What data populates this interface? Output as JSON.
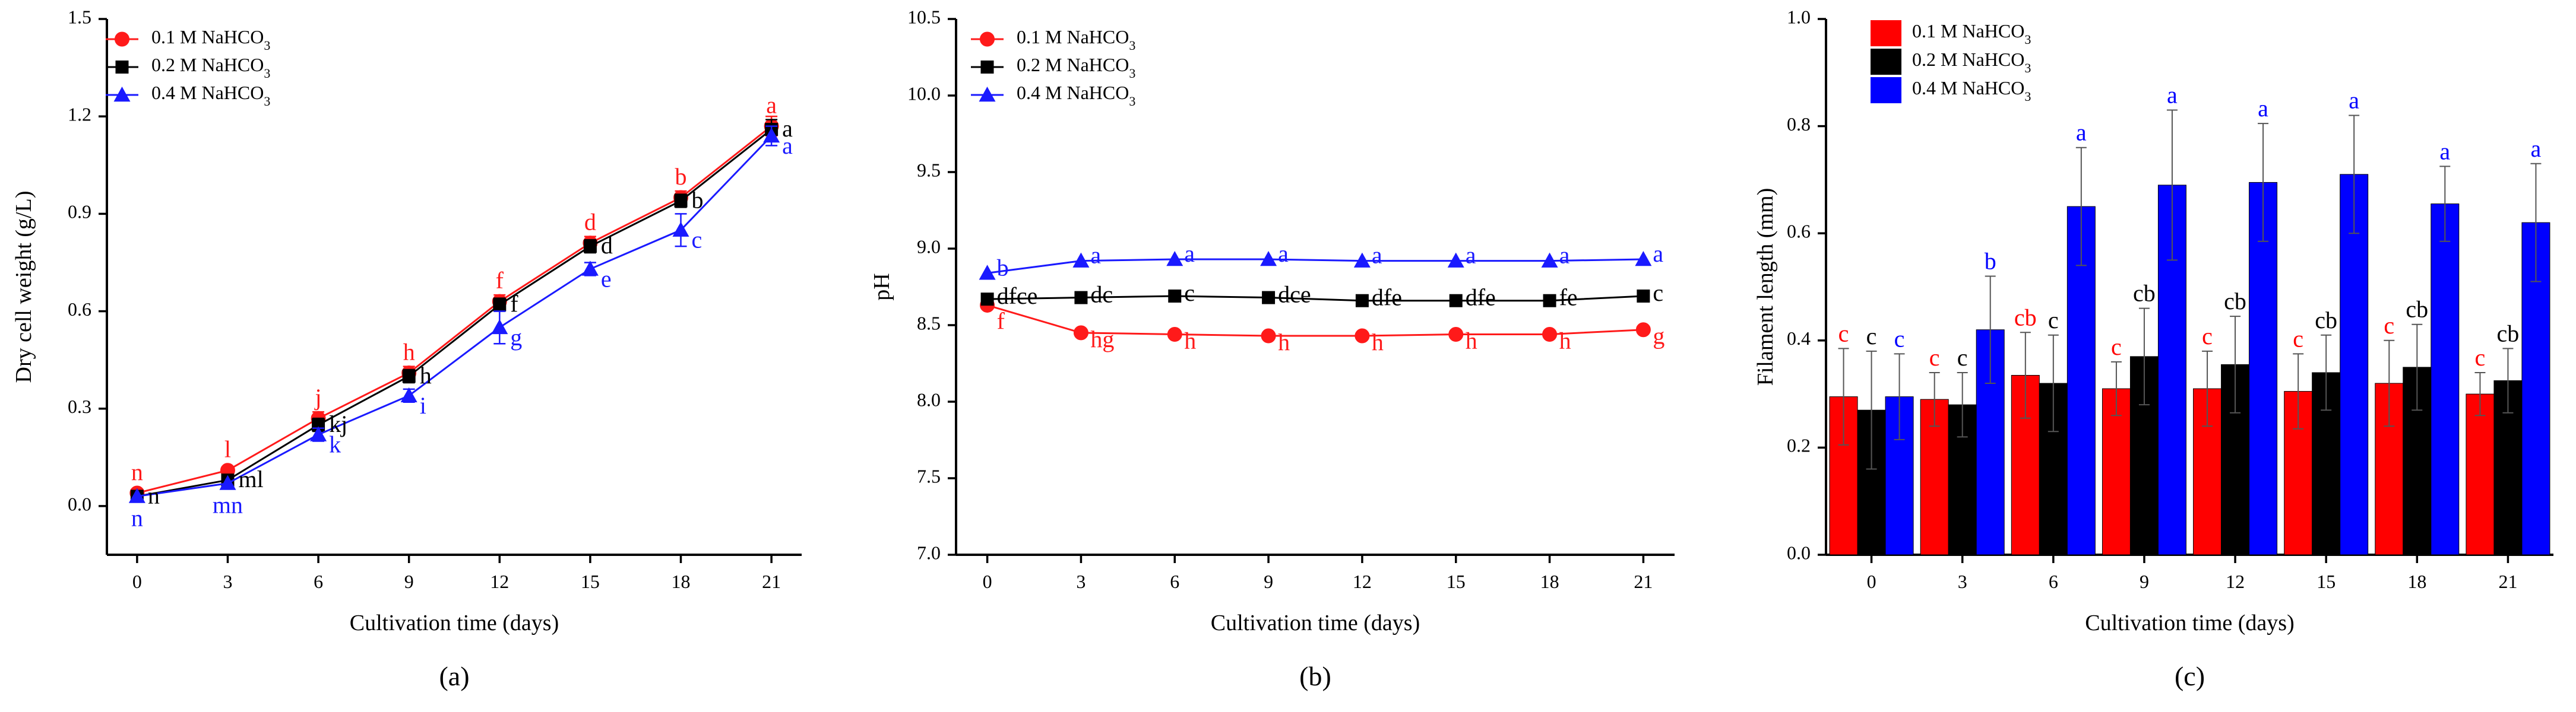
{
  "chart_data": [
    {
      "type": "line",
      "panel_label": "(a)",
      "xlabel": "Cultivation time (days)",
      "ylabel": "Dry cell weight (g/L)",
      "x": [
        0,
        3,
        6,
        9,
        12,
        15,
        18,
        21
      ],
      "xticks": [
        "0",
        "3",
        "6",
        "9",
        "12",
        "15",
        "18",
        "21"
      ],
      "xlim": [
        -1,
        22
      ],
      "ylim": [
        -0.15,
        1.5
      ],
      "yticks": [
        "0.0",
        "0.3",
        "0.6",
        "0.9",
        "1.2",
        "1.5"
      ],
      "legend_position": "top-left",
      "series": [
        {
          "name": "0.1 M NaHCO3",
          "legend": {
            "prefix": "0.1 M NaHCO",
            "sub": "3"
          },
          "color": "#ff1a1a",
          "marker": "circle",
          "values": [
            0.04,
            0.11,
            0.27,
            0.41,
            0.63,
            0.81,
            0.95,
            1.17
          ],
          "errors": [
            0.0,
            0.0,
            0.02,
            0.02,
            0.02,
            0.02,
            0.02,
            0.03
          ],
          "letters": [
            "n",
            "l",
            "j",
            "h",
            "f",
            "d",
            "b",
            "a"
          ]
        },
        {
          "name": "0.2 M NaHCO3",
          "legend": {
            "prefix": "0.2 M NaHCO",
            "sub": "3"
          },
          "color": "#000000",
          "marker": "square",
          "values": [
            0.03,
            0.08,
            0.25,
            0.4,
            0.62,
            0.8,
            0.94,
            1.16
          ],
          "errors": [
            0.0,
            0.0,
            0.02,
            0.02,
            0.02,
            0.02,
            0.02,
            0.03
          ],
          "letters": [
            "n",
            "ml",
            "kj",
            "h",
            "f",
            "d",
            "b",
            "a"
          ]
        },
        {
          "name": "0.4 M NaHCO3",
          "legend": {
            "prefix": "0.4 M NaHCO",
            "sub": "3"
          },
          "color": "#1a1aff",
          "marker": "triangle",
          "values": [
            0.03,
            0.07,
            0.22,
            0.34,
            0.55,
            0.73,
            0.85,
            1.14
          ],
          "errors": [
            0.0,
            0.0,
            0.02,
            0.02,
            0.05,
            0.02,
            0.05,
            0.03
          ],
          "letters": [
            "n",
            "mn",
            "k",
            "i",
            "g",
            "e",
            "c",
            "a"
          ]
        }
      ]
    },
    {
      "type": "line",
      "panel_label": "(b)",
      "xlabel": "Cultivation time (days)",
      "ylabel": "pH",
      "x": [
        0,
        3,
        6,
        9,
        12,
        15,
        18,
        21
      ],
      "xticks": [
        "0",
        "3",
        "6",
        "9",
        "12",
        "15",
        "18",
        "21"
      ],
      "xlim": [
        -1,
        22
      ],
      "ylim": [
        7.0,
        10.5
      ],
      "yticks": [
        "7.0",
        "7.5",
        "8.0",
        "8.5",
        "9.0",
        "9.5",
        "10.0",
        "10.5"
      ],
      "legend_position": "top-left",
      "series": [
        {
          "name": "0.1 M NaHCO3",
          "legend": {
            "prefix": "0.1 M NaHCO",
            "sub": "3"
          },
          "color": "#ff1a1a",
          "marker": "circle",
          "values": [
            8.63,
            8.45,
            8.44,
            8.43,
            8.43,
            8.44,
            8.44,
            8.47
          ],
          "letters": [
            "f",
            "hg",
            "h",
            "h",
            "h",
            "h",
            "h",
            "g"
          ]
        },
        {
          "name": "0.2 M NaHCO3",
          "legend": {
            "prefix": "0.2 M NaHCO",
            "sub": "3"
          },
          "color": "#000000",
          "marker": "square",
          "values": [
            8.67,
            8.68,
            8.69,
            8.68,
            8.66,
            8.66,
            8.66,
            8.69
          ],
          "letters": [
            "dfce",
            "dc",
            "c",
            "dce",
            "dfe",
            "dfe",
            "fe",
            "c"
          ]
        },
        {
          "name": "0.4 M NaHCO3",
          "legend": {
            "prefix": "0.4 M NaHCO",
            "sub": "3"
          },
          "color": "#1a1aff",
          "marker": "triangle",
          "values": [
            8.84,
            8.92,
            8.93,
            8.93,
            8.92,
            8.92,
            8.92,
            8.93
          ],
          "letters": [
            "b",
            "a",
            "a",
            "a",
            "a",
            "a",
            "a",
            "a"
          ]
        }
      ]
    },
    {
      "type": "bar",
      "panel_label": "(c)",
      "xlabel": "Cultivation time (days)",
      "ylabel": "Filament length (mm)",
      "categories": [
        "0",
        "3",
        "6",
        "9",
        "12",
        "15",
        "18",
        "21"
      ],
      "ylim": [
        0.0,
        1.0
      ],
      "yticks": [
        "0.0",
        "0.2",
        "0.4",
        "0.6",
        "0.8",
        "1.0"
      ],
      "legend_position": "top-left",
      "series": [
        {
          "name": "0.1 M NaHCO3",
          "legend": {
            "prefix": "0.1 M NaHCO",
            "sub": "3"
          },
          "color": "#ff0000",
          "values": [
            0.295,
            0.29,
            0.335,
            0.31,
            0.31,
            0.305,
            0.32,
            0.3
          ],
          "errors": [
            0.09,
            0.05,
            0.08,
            0.05,
            0.07,
            0.07,
            0.08,
            0.04
          ],
          "letters": [
            "c",
            "c",
            "cb",
            "c",
            "c",
            "c",
            "c",
            "c"
          ]
        },
        {
          "name": "0.2 M NaHCO3",
          "legend": {
            "prefix": "0.2 M NaHCO",
            "sub": "3"
          },
          "color": "#000000",
          "values": [
            0.27,
            0.28,
            0.32,
            0.37,
            0.355,
            0.34,
            0.35,
            0.325
          ],
          "errors": [
            0.11,
            0.06,
            0.09,
            0.09,
            0.09,
            0.07,
            0.08,
            0.06
          ],
          "letters": [
            "c",
            "c",
            "c",
            "cb",
            "cb",
            "cb",
            "cb",
            "cb"
          ]
        },
        {
          "name": "0.4 M NaHCO3",
          "legend": {
            "prefix": "0.4 M NaHCO",
            "sub": "3"
          },
          "color": "#0000ff",
          "values": [
            0.295,
            0.42,
            0.65,
            0.69,
            0.695,
            0.71,
            0.655,
            0.62
          ],
          "errors": [
            0.08,
            0.1,
            0.11,
            0.14,
            0.11,
            0.11,
            0.07,
            0.11
          ],
          "letters": [
            "c",
            "b",
            "a",
            "a",
            "a",
            "a",
            "a",
            "a"
          ]
        }
      ]
    }
  ]
}
